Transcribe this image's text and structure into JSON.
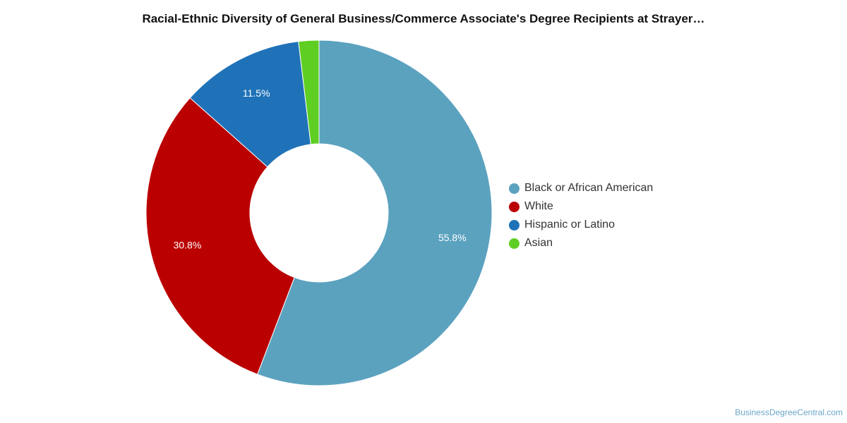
{
  "chart_data": {
    "type": "pie",
    "title": "Racial-Ethnic Diversity of General Business/Commerce Associate's Degree Recipients at Strayer…",
    "categories": [
      "Black or African American",
      "White",
      "Hispanic or Latino",
      "Asian"
    ],
    "values": [
      55.8,
      30.8,
      11.5,
      1.9
    ],
    "value_labels": [
      "55.8%",
      "30.8%",
      "11.5%",
      ""
    ],
    "colors": [
      "#5ba2bf",
      "#bb0000",
      "#1f72b8",
      "#5fce23"
    ],
    "donut": true,
    "legend_position": "right"
  },
  "watermark": "BusinessDegreeCentral.com"
}
